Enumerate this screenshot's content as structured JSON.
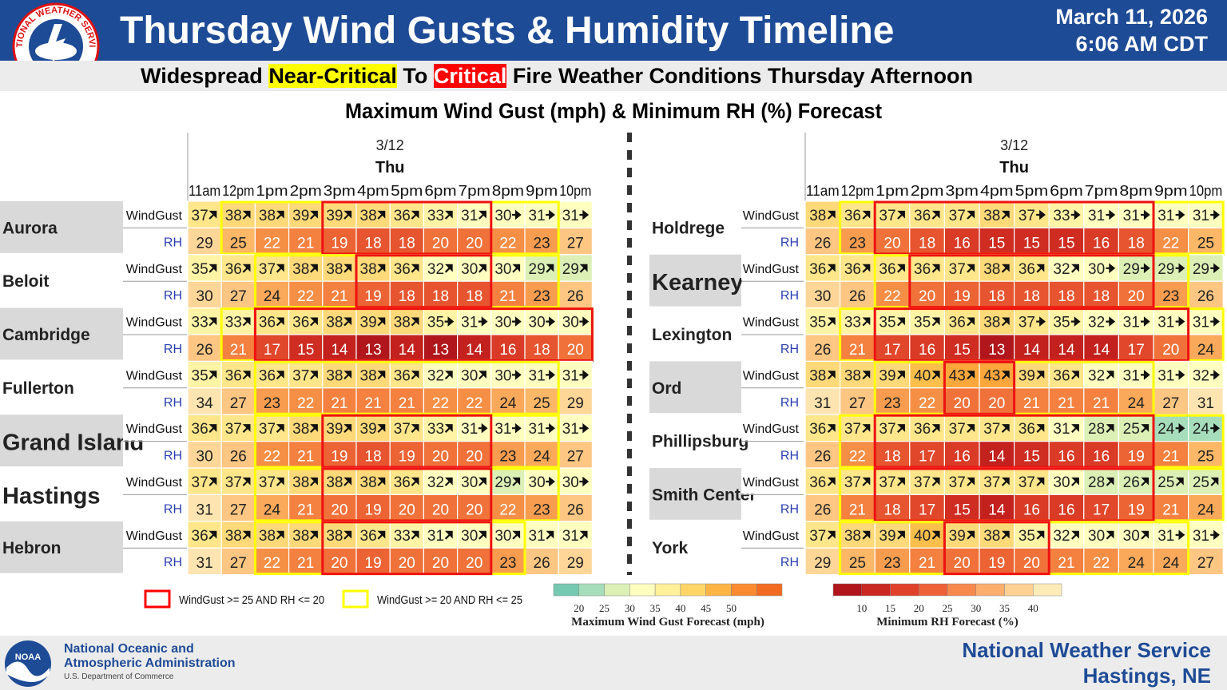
{
  "header": {
    "title": "Thursday Wind Gusts & Humidity Timeline",
    "date": "March 11, 2026",
    "time": "6:06 AM CDT",
    "subtitle_pre": "Widespread ",
    "subtitle_near": "Near-Critical",
    "subtitle_mid": " To ",
    "subtitle_crit": "Critical",
    "subtitle_post": " Fire Weather Conditions Thursday Afternoon",
    "logo_text": "NATIONAL WEATHER SERVICE"
  },
  "chart_data": {
    "type": "table",
    "title": "Maximum Wind Gust (mph) & Minimum RH (%) Forecast",
    "date_label": "3/12",
    "day_label": "Thu",
    "hours": [
      "11am",
      "12pm",
      "1pm",
      "2pm",
      "3pm",
      "4pm",
      "5pm",
      "6pm",
      "7pm",
      "8pm",
      "9pm",
      "10pm"
    ],
    "row_labels": {
      "wind": "WindGust",
      "rh": "RH"
    },
    "panels": [
      {
        "stations": [
          {
            "name": "Aurora",
            "big": false,
            "wind": [
              37,
              38,
              38,
              39,
              39,
              38,
              36,
              33,
              31,
              30,
              31,
              31
            ],
            "wind_dir": [
              "ne",
              "ne",
              "ne",
              "ne",
              "ne",
              "ne",
              "ne",
              "ne",
              "ne",
              "e",
              "e",
              "e"
            ],
            "rh": [
              29,
              25,
              22,
              21,
              19,
              18,
              18,
              20,
              20,
              22,
              23,
              27
            ],
            "critical": [
              4,
              8
            ],
            "near": [
              1,
              10
            ]
          },
          {
            "name": "Beloit",
            "big": false,
            "wind": [
              35,
              36,
              37,
              38,
              38,
              38,
              36,
              32,
              30,
              30,
              29,
              29
            ],
            "wind_dir": [
              "ne",
              "ne",
              "ne",
              "ne",
              "ne",
              "ne",
              "ne",
              "ne",
              "ne",
              "ne",
              "ne",
              "ne"
            ],
            "rh": [
              30,
              27,
              24,
              22,
              21,
              19,
              18,
              18,
              18,
              21,
              23,
              26
            ],
            "critical": [
              5,
              8
            ],
            "near": [
              2,
              10
            ]
          },
          {
            "name": "Cambridge",
            "big": false,
            "wind": [
              33,
              33,
              36,
              36,
              38,
              39,
              38,
              35,
              31,
              30,
              30,
              30
            ],
            "wind_dir": [
              "ne",
              "ne",
              "ne",
              "ne",
              "ne",
              "ne",
              "ne",
              "e",
              "e",
              "e",
              "e",
              "e"
            ],
            "rh": [
              26,
              21,
              17,
              15,
              14,
              13,
              14,
              13,
              14,
              16,
              18,
              20
            ],
            "critical": [
              2,
              11
            ],
            "near": [
              1,
              11
            ]
          },
          {
            "name": "Fullerton",
            "big": false,
            "wind": [
              35,
              36,
              36,
              37,
              38,
              38,
              36,
              32,
              30,
              30,
              31,
              31
            ],
            "wind_dir": [
              "ne",
              "ne",
              "ne",
              "ne",
              "ne",
              "ne",
              "ne",
              "ne",
              "ne",
              "e",
              "e",
              "e"
            ],
            "rh": [
              34,
              27,
              23,
              22,
              21,
              21,
              21,
              22,
              22,
              24,
              25,
              29
            ],
            "critical": null,
            "near": [
              2,
              10
            ]
          },
          {
            "name": "Grand Island",
            "big": true,
            "wind": [
              36,
              37,
              37,
              38,
              39,
              39,
              37,
              33,
              31,
              31,
              31,
              31
            ],
            "wind_dir": [
              "ne",
              "ne",
              "ne",
              "ne",
              "ne",
              "ne",
              "ne",
              "ne",
              "e",
              "e",
              "e",
              "e"
            ],
            "rh": [
              30,
              26,
              22,
              21,
              19,
              18,
              19,
              20,
              20,
              23,
              24,
              27
            ],
            "critical": [
              4,
              8
            ],
            "near": [
              2,
              10
            ]
          },
          {
            "name": "Hastings",
            "big": true,
            "wind": [
              37,
              37,
              37,
              38,
              38,
              38,
              36,
              32,
              30,
              29,
              30,
              30
            ],
            "wind_dir": [
              "ne",
              "ne",
              "ne",
              "ne",
              "ne",
              "ne",
              "ne",
              "ne",
              "ne",
              "ne",
              "e",
              "e"
            ],
            "rh": [
              31,
              27,
              24,
              21,
              20,
              19,
              20,
              20,
              20,
              22,
              23,
              26
            ],
            "critical": [
              4,
              8
            ],
            "near": [
              2,
              10
            ]
          },
          {
            "name": "Hebron",
            "big": false,
            "wind": [
              36,
              38,
              38,
              38,
              38,
              36,
              33,
              31,
              30,
              30,
              31,
              31
            ],
            "wind_dir": [
              "ne",
              "ne",
              "ne",
              "ne",
              "ne",
              "ne",
              "ne",
              "ne",
              "ne",
              "ne",
              "ne",
              "ne"
            ],
            "rh": [
              31,
              27,
              22,
              21,
              20,
              19,
              20,
              20,
              20,
              23,
              26,
              29
            ],
            "critical": [
              4,
              8
            ],
            "near": [
              2,
              9
            ]
          }
        ]
      },
      {
        "stations": [
          {
            "name": "Holdrege",
            "big": false,
            "wind": [
              38,
              36,
              37,
              36,
              37,
              38,
              37,
              33,
              31,
              31,
              31,
              31
            ],
            "wind_dir": [
              "ne",
              "ne",
              "ne",
              "ne",
              "ne",
              "ne",
              "e",
              "e",
              "e",
              "e",
              "e",
              "e"
            ],
            "rh": [
              26,
              23,
              20,
              18,
              16,
              15,
              15,
              15,
              16,
              18,
              22,
              25
            ],
            "critical": [
              2,
              9
            ],
            "near": [
              1,
              11
            ]
          },
          {
            "name": "Kearney",
            "big": true,
            "wind": [
              36,
              36,
              36,
              36,
              37,
              38,
              36,
              32,
              30,
              29,
              29,
              29
            ],
            "wind_dir": [
              "ne",
              "ne",
              "ne",
              "ne",
              "ne",
              "ne",
              "ne",
              "ne",
              "e",
              "e",
              "e",
              "e"
            ],
            "rh": [
              30,
              26,
              22,
              20,
              19,
              18,
              18,
              18,
              18,
              20,
              23,
              26
            ],
            "critical": [
              3,
              9
            ],
            "near": [
              2,
              10
            ]
          },
          {
            "name": "Lexington",
            "big": false,
            "wind": [
              35,
              33,
              35,
              35,
              36,
              38,
              37,
              35,
              32,
              31,
              31,
              31
            ],
            "wind_dir": [
              "ne",
              "ne",
              "ne",
              "ne",
              "ne",
              "ne",
              "e",
              "e",
              "e",
              "e",
              "e",
              "e"
            ],
            "rh": [
              26,
              21,
              17,
              16,
              15,
              13,
              14,
              14,
              14,
              17,
              20,
              24
            ],
            "critical": [
              2,
              10
            ],
            "near": [
              1,
              11
            ]
          },
          {
            "name": "Ord",
            "big": false,
            "wind": [
              38,
              38,
              39,
              40,
              43,
              43,
              39,
              36,
              32,
              31,
              31,
              32
            ],
            "wind_dir": [
              "ne",
              "ne",
              "ne",
              "ne",
              "ne",
              "ne",
              "ne",
              "ne",
              "ne",
              "e",
              "e",
              "e"
            ],
            "rh": [
              31,
              27,
              23,
              22,
              20,
              20,
              21,
              21,
              21,
              24,
              27,
              31
            ],
            "critical": [
              4,
              5
            ],
            "near": [
              2,
              9
            ]
          },
          {
            "name": "Phillipsburg",
            "big": false,
            "wind": [
              36,
              37,
              37,
              36,
              37,
              37,
              36,
              31,
              28,
              25,
              24,
              24
            ],
            "wind_dir": [
              "ne",
              "ne",
              "ne",
              "ne",
              "ne",
              "ne",
              "ne",
              "ne",
              "ne",
              "ne",
              "e",
              "e"
            ],
            "rh": [
              26,
              22,
              18,
              17,
              16,
              14,
              15,
              16,
              16,
              19,
              21,
              25
            ],
            "critical": [
              2,
              9
            ],
            "near": [
              1,
              11
            ]
          },
          {
            "name": "Smith Center",
            "big": false,
            "wind": [
              36,
              37,
              37,
              37,
              37,
              37,
              37,
              30,
              28,
              26,
              25,
              25
            ],
            "wind_dir": [
              "ne",
              "ne",
              "ne",
              "ne",
              "ne",
              "ne",
              "ne",
              "ne",
              "ne",
              "ne",
              "ne",
              "ne"
            ],
            "rh": [
              26,
              21,
              18,
              17,
              15,
              14,
              16,
              16,
              17,
              19,
              21,
              24
            ],
            "critical": [
              2,
              9
            ],
            "near": [
              1,
              11
            ]
          },
          {
            "name": "York",
            "big": false,
            "wind": [
              37,
              38,
              39,
              40,
              39,
              38,
              35,
              32,
              30,
              30,
              31,
              31
            ],
            "wind_dir": [
              "ne",
              "ne",
              "ne",
              "ne",
              "ne",
              "ne",
              "ne",
              "ne",
              "ne",
              "ne",
              "e",
              "e"
            ],
            "rh": [
              29,
              25,
              23,
              21,
              20,
              19,
              20,
              21,
              22,
              24,
              24,
              27
            ],
            "critical": [
              4,
              6
            ],
            "near": [
              1,
              10
            ]
          }
        ]
      }
    ],
    "legend": {
      "critical_label": "WindGust >= 25 AND RH <= 20",
      "near_label": "WindGust >= 20 AND RH <= 25",
      "critical_color": "#ff0000",
      "near_color": "#ffff00"
    },
    "wind_scale": {
      "ticks": [
        20,
        25,
        30,
        35,
        40,
        45,
        50
      ],
      "colors": [
        "#74c9b0",
        "#a6ddbb",
        "#dcf0b6",
        "#ffffc0",
        "#fff09a",
        "#fed668",
        "#fdb445",
        "#fb8a30",
        "#f26b21"
      ],
      "label": "Maximum Wind Gust Forecast (mph)"
    },
    "rh_scale": {
      "ticks": [
        10,
        15,
        20,
        25,
        30,
        35,
        40
      ],
      "colors": [
        "#b0161b",
        "#cb2722",
        "#e0412a",
        "#ee6036",
        "#f7894d",
        "#fcae6c",
        "#fdd093",
        "#feecb8"
      ],
      "label": "Minimum RH Forecast (%)"
    }
  },
  "footer": {
    "noaa_line1": "National Oceanic and",
    "noaa_line2": "Atmospheric Administration",
    "noaa_dept": "U.S. Department of Commerce",
    "noaa_badge": "NOAA",
    "nws_line1": "National Weather Service",
    "nws_line2": "Hastings, NE"
  }
}
